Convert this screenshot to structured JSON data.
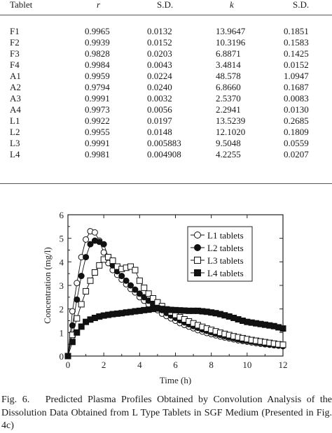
{
  "table": {
    "headers": [
      "Tablet",
      "r",
      "S.D.",
      "k",
      "S.D."
    ],
    "rows": [
      [
        "F1",
        "0.9965",
        "0.0132",
        "13.9647",
        "0.1851"
      ],
      [
        "F2",
        "0.9939",
        "0.0152",
        "10.3196",
        "0.1583"
      ],
      [
        "F3",
        "0.9828",
        "0.0203",
        "6.8871",
        "0.1425"
      ],
      [
        "F4",
        "0.9984",
        "0.0043",
        "3.4814",
        "0.0152"
      ],
      [
        "A1",
        "0.9959",
        "0.0224",
        "48.578",
        "1.0947"
      ],
      [
        "A2",
        "0.9794",
        "0.0240",
        "6.8660",
        "0.1687"
      ],
      [
        "A3",
        "0.9991",
        "0.0032",
        "2.5370",
        "0.0083"
      ],
      [
        "A4",
        "0.9973",
        "0.0056",
        "2.2941",
        "0.0130"
      ],
      [
        "L1",
        "0.9922",
        "0.0197",
        "13.5239",
        "0.2685"
      ],
      [
        "L2",
        "0.9955",
        "0.0148",
        "12.1020",
        "0.1809"
      ],
      [
        "L3",
        "0.9991",
        "0.005883",
        "9.5048",
        "0.0559"
      ],
      [
        "L4",
        "0.9981",
        "0.004908",
        "4.2255",
        "0.0207"
      ]
    ]
  },
  "chart_data": {
    "type": "scatter",
    "xlabel": "Time (h)",
    "ylabel": "Concentration (mg/l)",
    "xlim": [
      0,
      12
    ],
    "ylim": [
      0,
      6
    ],
    "xticks": [
      0,
      2,
      4,
      6,
      8,
      10,
      12
    ],
    "yticks": [
      0,
      1,
      2,
      3,
      4,
      5,
      6
    ],
    "legend_position": "top-right",
    "series": [
      {
        "name": "L1 tablets",
        "marker": "open-circle",
        "x": [
          0,
          0.25,
          0.5,
          0.75,
          1,
          1.25,
          1.5,
          1.75,
          2,
          2.25,
          2.5,
          2.75,
          3,
          3.25,
          3.5,
          3.75,
          4,
          4.25,
          4.5,
          4.75,
          5,
          5.25,
          5.5,
          5.75,
          6,
          6.25,
          6.5,
          6.75,
          7,
          7.25,
          7.5,
          7.75,
          8,
          8.25,
          8.5,
          8.75,
          9,
          9.25,
          9.5,
          9.75,
          10,
          10.25,
          10.5,
          10.75,
          11,
          11.25,
          11.5,
          11.75,
          12
        ],
        "y": [
          0,
          1.9,
          3.1,
          4.2,
          4.95,
          5.3,
          5.25,
          4.9,
          4.4,
          3.95,
          3.65,
          3.45,
          3.25,
          3.05,
          2.85,
          2.7,
          2.5,
          2.35,
          2.2,
          2.05,
          1.95,
          1.8,
          1.7,
          1.6,
          1.5,
          1.4,
          1.32,
          1.25,
          1.18,
          1.1,
          1.04,
          0.98,
          0.93,
          0.88,
          0.83,
          0.79,
          0.75,
          0.71,
          0.67,
          0.64,
          0.61,
          0.58,
          0.55,
          0.52,
          0.5,
          0.48,
          0.46,
          0.44,
          0.42
        ]
      },
      {
        "name": "L2 tablets",
        "marker": "filled-circle",
        "x": [
          0,
          0.25,
          0.5,
          0.75,
          1,
          1.25,
          1.5,
          1.75,
          2,
          2.25,
          2.5,
          2.75,
          3,
          3.25,
          3.5,
          3.75,
          4,
          4.25,
          4.5,
          4.75,
          5,
          5.25,
          5.5,
          5.75,
          6,
          6.25,
          6.5,
          6.75,
          7,
          7.25,
          7.5,
          7.75,
          8,
          8.25,
          8.5,
          8.75,
          9,
          9.25,
          9.5,
          9.75,
          10,
          10.25,
          10.5,
          10.75,
          11,
          11.25,
          11.5,
          11.75,
          12
        ],
        "y": [
          0,
          1.3,
          2.4,
          3.4,
          4.2,
          4.75,
          4.9,
          4.85,
          4.75,
          4.2,
          3.85,
          3.6,
          3.4,
          3.2,
          3.0,
          2.82,
          2.65,
          2.5,
          2.35,
          2.2,
          2.07,
          1.95,
          1.83,
          1.72,
          1.62,
          1.52,
          1.43,
          1.35,
          1.27,
          1.2,
          1.13,
          1.07,
          1.01,
          0.95,
          0.9,
          0.85,
          0.8,
          0.76,
          0.72,
          0.68,
          0.65,
          0.62,
          0.59,
          0.56,
          0.53,
          0.5,
          0.48,
          0.46,
          0.44
        ]
      },
      {
        "name": "L3 tablets",
        "marker": "open-square",
        "x": [
          0,
          0.25,
          0.5,
          0.75,
          1,
          1.25,
          1.5,
          1.75,
          2,
          2.25,
          2.5,
          2.75,
          3,
          3.25,
          3.5,
          3.75,
          4,
          4.25,
          4.5,
          4.75,
          5,
          5.25,
          5.5,
          5.75,
          6,
          6.25,
          6.5,
          6.75,
          7,
          7.25,
          7.5,
          7.75,
          8,
          8.25,
          8.5,
          8.75,
          9,
          9.25,
          9.5,
          9.75,
          10,
          10.25,
          10.5,
          10.75,
          11,
          11.25,
          11.5,
          11.75,
          12
        ],
        "y": [
          0,
          0.9,
          1.6,
          2.2,
          2.75,
          3.2,
          3.55,
          3.85,
          4.1,
          4.2,
          4.05,
          3.8,
          3.7,
          3.75,
          3.8,
          3.65,
          3.2,
          2.9,
          2.65,
          2.45,
          2.28,
          2.12,
          1.98,
          1.86,
          1.75,
          1.65,
          1.56,
          1.47,
          1.39,
          1.31,
          1.24,
          1.17,
          1.11,
          1.05,
          0.99,
          0.94,
          0.89,
          0.84,
          0.8,
          0.76,
          0.72,
          0.68,
          0.65,
          0.62,
          0.59,
          0.56,
          0.53,
          0.5,
          0.48
        ]
      },
      {
        "name": "L4 tablets",
        "marker": "filled-square",
        "x": [
          0,
          0.25,
          0.5,
          0.75,
          1,
          1.25,
          1.5,
          1.75,
          2,
          2.25,
          2.5,
          2.75,
          3,
          3.25,
          3.5,
          3.75,
          4,
          4.25,
          4.5,
          4.75,
          5,
          5.25,
          5.5,
          5.75,
          6,
          6.25,
          6.5,
          6.75,
          7,
          7.25,
          7.5,
          7.75,
          8,
          8.25,
          8.5,
          8.75,
          9,
          9.25,
          9.5,
          9.75,
          10,
          10.25,
          10.5,
          10.75,
          11,
          11.25,
          11.5,
          11.75,
          12
        ],
        "y": [
          0,
          0.6,
          1.0,
          1.25,
          1.45,
          1.55,
          1.62,
          1.68,
          1.72,
          1.75,
          1.78,
          1.8,
          1.82,
          1.85,
          1.87,
          1.9,
          1.92,
          1.95,
          1.97,
          2.0,
          2.02,
          2.0,
          1.98,
          1.96,
          1.95,
          1.94,
          1.93,
          1.92,
          1.92,
          1.92,
          1.9,
          1.88,
          1.85,
          1.82,
          1.78,
          1.73,
          1.68,
          1.62,
          1.56,
          1.5,
          1.45,
          1.42,
          1.39,
          1.36,
          1.33,
          1.3,
          1.27,
          1.22,
          1.17
        ]
      }
    ]
  },
  "caption": {
    "text": "Fig. 6.   Predicted Plasma Profiles Obtained by Convolution Analysis of the Dissolution Data Obtained from L Type Tablets in SGF Medium (Presented in Fig. 4c)"
  }
}
